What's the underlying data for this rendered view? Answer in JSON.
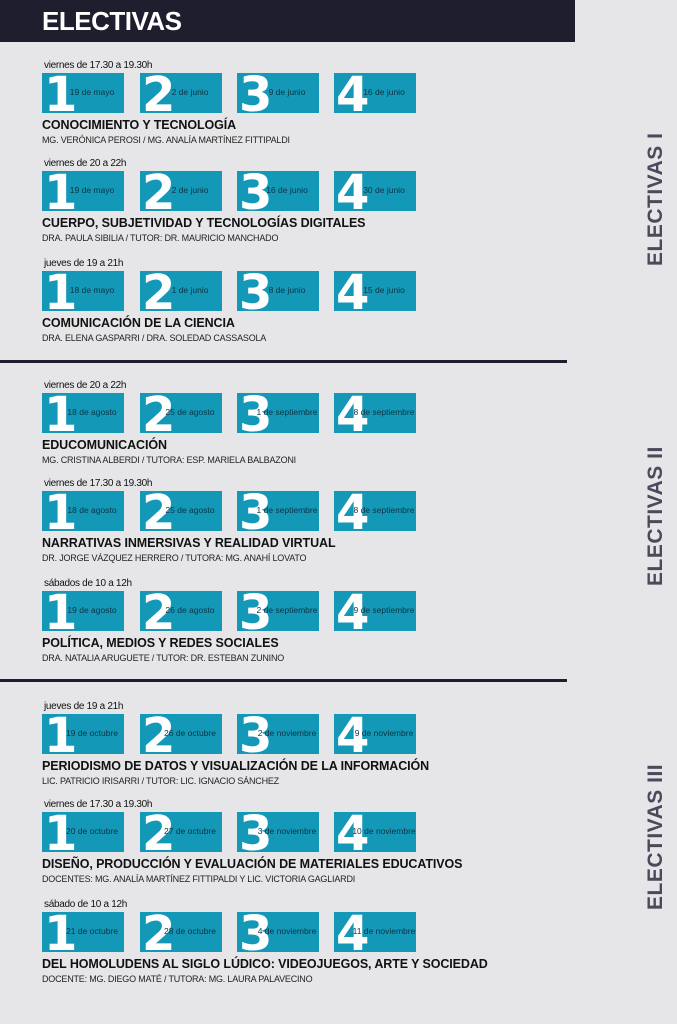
{
  "header": {
    "title": "ELECTIVAS"
  },
  "groups": [
    {
      "label": "ELECTIVAS I",
      "courses": [
        {
          "schedule": "viernes de 17.30 a 19.30h",
          "sessions": [
            {
              "num": "1",
              "date": "19 de mayo"
            },
            {
              "num": "2",
              "date": "2 de junio"
            },
            {
              "num": "3",
              "date": "9 de junio"
            },
            {
              "num": "4",
              "date": "16 de junio"
            }
          ],
          "title": "CONOCIMIENTO Y TECNOLOGÍA",
          "staff": "MG. VERÓNICA PEROSI / MG. ANALÍA MARTÍNEZ FITTIPALDI"
        },
        {
          "schedule": "viernes de 20 a 22h",
          "sessions": [
            {
              "num": "1",
              "date": "19 de mayo"
            },
            {
              "num": "2",
              "date": "2 de junio"
            },
            {
              "num": "3",
              "date": "16 de junio"
            },
            {
              "num": "4",
              "date": "30 de junio"
            }
          ],
          "title": "CUERPO, SUBJETIVIDAD Y TECNOLOGÍAS DIGITALES",
          "staff": "DRA. PAULA SIBILIA / TUTOR: DR. MAURICIO MANCHADO"
        },
        {
          "schedule": "jueves de 19 a 21h",
          "sessions": [
            {
              "num": "1",
              "date": "18 de mayo"
            },
            {
              "num": "2",
              "date": "1 de junio"
            },
            {
              "num": "3",
              "date": "8 de junio"
            },
            {
              "num": "4",
              "date": "15 de junio"
            }
          ],
          "title": "COMUNICACIÓN DE LA CIENCIA",
          "staff": "DRA. ELENA GASPARRI / DRA. SOLEDAD CASSASOLA"
        }
      ]
    },
    {
      "label": "ELECTIVAS II",
      "courses": [
        {
          "schedule": "viernes de 20 a 22h",
          "sessions": [
            {
              "num": "1",
              "date": "18 de agosto"
            },
            {
              "num": "2",
              "date": "25 de agosto"
            },
            {
              "num": "3",
              "date": "1 de septiembre"
            },
            {
              "num": "4",
              "date": "8 de septiembre"
            }
          ],
          "title": "EDUCOMUNICACIÓN",
          "staff": "MG. CRISTINA ALBERDI / TUTORA: ESP. MARIELA BALBAZONI"
        },
        {
          "schedule": "viernes de 17.30 a 19.30h",
          "sessions": [
            {
              "num": "1",
              "date": "18 de agosto"
            },
            {
              "num": "2",
              "date": "25 de agosto"
            },
            {
              "num": "3",
              "date": "1 de septiembre"
            },
            {
              "num": "4",
              "date": "8 de septiembre"
            }
          ],
          "title": "NARRATIVAS INMERSIVAS Y REALIDAD VIRTUAL",
          "staff": "DR. JORGE VÁZQUEZ HERRERO / TUTORA: MG. ANAHÍ LOVATO"
        },
        {
          "schedule": "sábados de 10 a 12h",
          "sessions": [
            {
              "num": "1",
              "date": "19 de agosto"
            },
            {
              "num": "2",
              "date": "26 de agosto"
            },
            {
              "num": "3",
              "date": "2 de septiembre"
            },
            {
              "num": "4",
              "date": "9 de septiembre"
            }
          ],
          "title": "POLÍTICA, MEDIOS Y REDES SOCIALES",
          "staff": "DRA. NATALIA ARUGUETE / TUTOR: DR. ESTEBAN ZUNINO"
        }
      ]
    },
    {
      "label": "ELECTIVAS III",
      "courses": [
        {
          "schedule": "jueves de 19 a 21h",
          "sessions": [
            {
              "num": "1",
              "date": "19 de octubre"
            },
            {
              "num": "2",
              "date": "26 de octubre"
            },
            {
              "num": "3",
              "date": "2 de noviembre"
            },
            {
              "num": "4",
              "date": "9 de noviembre"
            }
          ],
          "title": "PERIODISMO DE DATOS Y VISUALIZACIÓN DE LA INFORMACIÓN",
          "staff": "LIC. PATRICIO IRISARRI / TUTOR: LIC. IGNACIO SÁNCHEZ"
        },
        {
          "schedule": "viernes de 17.30 a 19.30h",
          "sessions": [
            {
              "num": "1",
              "date": "20 de octubre"
            },
            {
              "num": "2",
              "date": "27 de octubre"
            },
            {
              "num": "3",
              "date": "3 de noviembre"
            },
            {
              "num": "4",
              "date": "10 de noviembre"
            }
          ],
          "title": "DISEÑO, PRODUCCIÓN Y EVALUACIÓN DE MATERIALES EDUCATIVOS",
          "staff": "DOCENTES: MG. ANALÍA MARTÍNEZ FITTIPALDI Y LIC. VICTORIA GAGLIARDI"
        },
        {
          "schedule": "sábado de 10 a 12h",
          "sessions": [
            {
              "num": "1",
              "date": "21 de octubre"
            },
            {
              "num": "2",
              "date": "28 de octubre"
            },
            {
              "num": "3",
              "date": "4 de noviembre"
            },
            {
              "num": "4",
              "date": "11 de noviembre"
            }
          ],
          "title": "DEL HOMOLUDENS AL SIGLO LÚDICO: VIDEOJUEGOS, ARTE Y SOCIEDAD",
          "staff": "DOCENTE: MG. DIEGO MATÉ / TUTORA: MG. LAURA PALAVECINO"
        }
      ]
    }
  ]
}
